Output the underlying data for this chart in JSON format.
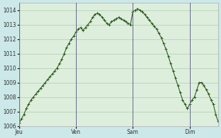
{
  "title": "",
  "ylabel": "",
  "xlabel": "",
  "background_color": "#cce8e8",
  "plot_bg_color": "#ddeedd",
  "line_color": "#2d5a1b",
  "marker_color": "#2d5a1b",
  "grid_color": "#aaccaa",
  "ylim": [
    1006,
    1014.5
  ],
  "yticks": [
    1006,
    1007,
    1008,
    1009,
    1010,
    1011,
    1012,
    1013,
    1014
  ],
  "day_labels": [
    "Jeu",
    "Ven",
    "Sam",
    "Dim"
  ],
  "day_positions": [
    0,
    24,
    48,
    72
  ],
  "x_values": [
    0,
    1,
    2,
    3,
    4,
    5,
    6,
    7,
    8,
    9,
    10,
    11,
    12,
    13,
    14,
    15,
    16,
    17,
    18,
    19,
    20,
    21,
    22,
    23,
    24,
    25,
    26,
    27,
    28,
    29,
    30,
    31,
    32,
    33,
    34,
    35,
    36,
    37,
    38,
    39,
    40,
    41,
    42,
    43,
    44,
    45,
    46,
    47,
    48,
    49,
    50,
    51,
    52,
    53,
    54,
    55,
    56,
    57,
    58,
    59,
    60,
    61,
    62,
    63,
    64,
    65,
    66,
    67,
    68,
    69,
    70,
    71,
    72,
    73,
    74,
    75,
    76,
    77,
    78,
    79,
    80,
    81,
    82,
    83,
    84
  ],
  "y_values": [
    1006.2,
    1006.5,
    1006.8,
    1007.2,
    1007.5,
    1007.8,
    1008.0,
    1008.2,
    1008.4,
    1008.6,
    1008.8,
    1009.0,
    1009.2,
    1009.4,
    1009.6,
    1009.8,
    1010.0,
    1010.3,
    1010.6,
    1011.0,
    1011.4,
    1011.7,
    1012.0,
    1012.2,
    1012.5,
    1012.7,
    1012.8,
    1012.6,
    1012.8,
    1013.0,
    1013.2,
    1013.5,
    1013.7,
    1013.8,
    1013.7,
    1013.5,
    1013.3,
    1013.1,
    1013.0,
    1013.2,
    1013.3,
    1013.4,
    1013.5,
    1013.4,
    1013.3,
    1013.2,
    1013.1,
    1013.0,
    1013.9,
    1014.0,
    1014.1,
    1014.0,
    1013.9,
    1013.7,
    1013.5,
    1013.3,
    1013.1,
    1012.9,
    1012.7,
    1012.4,
    1012.1,
    1011.7,
    1011.3,
    1010.8,
    1010.3,
    1009.8,
    1009.3,
    1008.8,
    1008.3,
    1007.8,
    1007.5,
    1007.2,
    1007.5,
    1007.8,
    1008.0,
    1008.5,
    1009.0,
    1009.0,
    1008.8,
    1008.5,
    1008.2,
    1007.8,
    1007.5,
    1006.8,
    1006.3
  ]
}
